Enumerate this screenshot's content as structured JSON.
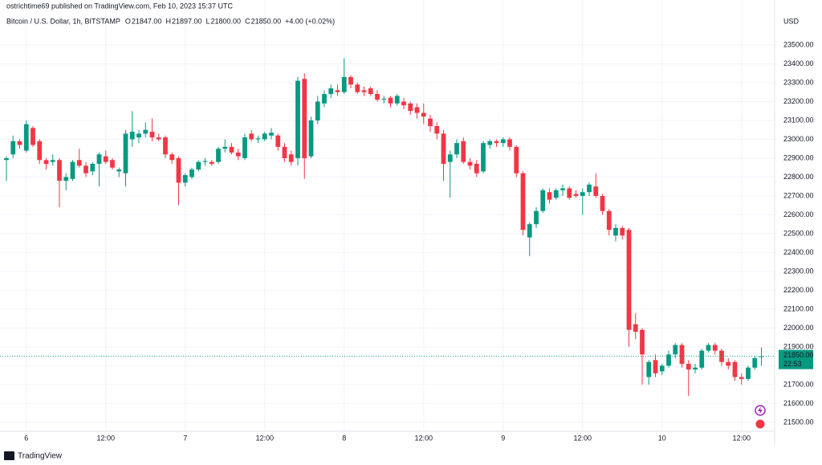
{
  "header": {
    "published": "ostrichtime69 published on TradingView.com, Feb 10, 2023 15:37 UTC",
    "symbol": "Bitcoin / U.S. Dollar, 1h, BITSTAMP",
    "ohlc": [
      {
        "label": "O",
        "value": "21847.00"
      },
      {
        "label": "H",
        "value": "21897.00"
      },
      {
        "label": "L",
        "value": "21800.00"
      },
      {
        "label": "C",
        "value": "21850.00"
      }
    ],
    "change": "+4.00 (+0.02%)",
    "currency": "USD",
    "price_tag": "21850.00",
    "countdown": "22:53",
    "logo": "TradingView"
  },
  "chart_data": {
    "type": "candlestick",
    "up_color": "#089981",
    "down_color": "#f23645",
    "grid": true,
    "x": [
      0,
      1,
      2,
      3,
      4,
      5,
      6,
      7,
      8,
      9,
      10,
      11,
      12,
      13,
      14,
      15,
      16,
      17,
      18,
      19,
      20,
      21,
      22,
      23,
      24,
      25,
      26,
      27,
      28,
      29,
      30,
      31,
      32,
      33,
      34,
      35,
      36,
      37,
      38,
      39,
      40,
      41,
      42,
      43,
      44,
      45,
      46,
      47,
      48,
      49,
      50,
      51,
      52,
      53,
      54,
      55,
      56,
      57,
      58,
      59,
      60,
      61,
      62,
      63,
      64,
      65,
      66,
      67,
      68,
      69,
      70,
      71,
      72,
      73,
      74,
      75,
      76,
      77,
      78,
      79,
      80,
      81,
      82,
      83,
      84,
      85,
      86,
      87,
      88,
      89,
      90,
      91,
      92,
      93,
      94,
      95,
      96,
      97,
      98,
      99,
      100,
      101,
      102,
      103,
      104,
      105,
      106,
      107,
      108,
      109,
      110,
      111,
      112,
      113,
      114
    ],
    "open": [
      22890,
      22920,
      22990,
      22940,
      23060,
      22990,
      22890,
      22880,
      22890,
      22780,
      22790,
      22890,
      22860,
      22830,
      22870,
      22910,
      22890,
      22830,
      22820,
      23000,
      23010,
      23030,
      23040,
      23010,
      23010,
      22920,
      22900,
      22770,
      22800,
      22840,
      22880,
      22880,
      22880,
      22950,
      22960,
      22930,
      22900,
      23030,
      23000,
      23000,
      23020,
      23020,
      22960,
      22920,
      22900,
      23320,
      22910,
      23100,
      23190,
      23240,
      23260,
      23250,
      23330,
      23290,
      23260,
      23270,
      23240,
      23210,
      23220,
      23190,
      23200,
      23190,
      23170,
      23140,
      23110,
      23070,
      23030,
      22880,
      22920,
      22990,
      22880,
      22870,
      22830,
      22970,
      22990,
      22980,
      23000,
      22960,
      22820,
      22480,
      22550,
      22620,
      22720,
      22690,
      22730,
      22740,
      22710,
      22700,
      22720,
      22750,
      22700,
      22620,
      22490,
      22530,
      22520,
      22020,
      21990,
      21740,
      21830,
      21770,
      21800,
      21860,
      21910,
      21810,
      21780,
      21790,
      21880,
      21910,
      21880,
      21820,
      21820,
      21740,
      21730,
      21790,
      21847
    ],
    "high": [
      22910,
      23020,
      23000,
      23100,
      23070,
      23000,
      22900,
      22920,
      22900,
      22820,
      22890,
      22950,
      22880,
      22880,
      22930,
      22940,
      22900,
      22850,
      23050,
      23150,
      23050,
      23090,
      23110,
      23030,
      23020,
      22930,
      22910,
      22820,
      22850,
      22890,
      22900,
      22890,
      22960,
      23000,
      22980,
      22950,
      23030,
      23050,
      23020,
      23040,
      23060,
      23030,
      22980,
      22940,
      23330,
      23350,
      23120,
      23230,
      23260,
      23290,
      23290,
      23430,
      23340,
      23300,
      23280,
      23280,
      23260,
      23230,
      23230,
      23240,
      23220,
      23200,
      23190,
      23190,
      23130,
      23090,
      23050,
      22940,
      23000,
      23010,
      22900,
      22890,
      22990,
      23000,
      23000,
      23010,
      23010,
      22970,
      22830,
      22560,
      22640,
      22740,
      22740,
      22740,
      22760,
      22750,
      22730,
      22740,
      22770,
      22820,
      22710,
      22630,
      22550,
      22540,
      22530,
      22080,
      22000,
      21830,
      21860,
      21810,
      21880,
      21920,
      21920,
      21830,
      21810,
      21890,
      21920,
      21920,
      21890,
      21840,
      21830,
      21760,
      21800,
      21850,
      21897
    ],
    "low": [
      22780,
      22900,
      22950,
      22930,
      22960,
      22870,
      22840,
      22860,
      22640,
      22730,
      22780,
      22850,
      22800,
      22810,
      22750,
      22870,
      22840,
      22800,
      22750,
      22960,
      22980,
      23010,
      22990,
      22990,
      22900,
      22870,
      22650,
      22750,
      22790,
      22830,
      22860,
      22860,
      22870,
      22930,
      22920,
      22890,
      22890,
      22990,
      22980,
      22990,
      23000,
      22940,
      22880,
      22860,
      22860,
      22790,
      22900,
      23080,
      23170,
      23220,
      23230,
      23240,
      23270,
      23240,
      23230,
      23230,
      23200,
      23190,
      23170,
      23180,
      23160,
      23130,
      23110,
      23080,
      23040,
      23000,
      22780,
      22690,
      22900,
      22870,
      22840,
      22800,
      22820,
      22950,
      22960,
      22960,
      22940,
      22800,
      22490,
      22380,
      22530,
      22610,
      22660,
      22680,
      22700,
      22680,
      22690,
      22600,
      22700,
      22690,
      22600,
      22490,
      22460,
      22470,
      21900,
      21940,
      21700,
      21700,
      21740,
      21750,
      21790,
      21840,
      21790,
      21640,
      21760,
      21780,
      21870,
      21860,
      21800,
      21780,
      21720,
      21700,
      21720,
      21780,
      21800
    ],
    "close": [
      22900,
      22990,
      22970,
      23080,
      22970,
      22890,
      22870,
      22890,
      22780,
      22800,
      22880,
      22860,
      22820,
      22870,
      22920,
      22880,
      22850,
      22840,
      23030,
      23040,
      23030,
      23050,
      23010,
      23000,
      22920,
      22890,
      22770,
      22810,
      22840,
      22880,
      22885,
      22870,
      22950,
      22960,
      22930,
      22910,
      23010,
      23000,
      23005,
      23030,
      23035,
      22960,
      22900,
      22880,
      23310,
      22900,
      23100,
      23200,
      23240,
      23270,
      23250,
      23330,
      23290,
      23250,
      23250,
      23240,
      23210,
      23215,
      23190,
      23230,
      23180,
      23150,
      23140,
      23120,
      23070,
      23030,
      22870,
      22920,
      22980,
      22880,
      22860,
      22820,
      22980,
      22990,
      22980,
      23000,
      22960,
      22820,
      22520,
      22550,
      22620,
      22730,
      22680,
      22730,
      22740,
      22690,
      22700,
      22720,
      22760,
      22700,
      22620,
      22520,
      22530,
      22490,
      21990,
      21980,
      21860,
      21820,
      21760,
      21800,
      21860,
      21910,
      21810,
      21780,
      21790,
      21880,
      21910,
      21880,
      21820,
      21800,
      21740,
      21730,
      21790,
      21840,
      21850
    ],
    "xlim": [
      -0.97,
      116
    ],
    "xticks": [
      {
        "value": 3,
        "label": "6"
      },
      {
        "value": 15,
        "label": "12:00"
      },
      {
        "value": 27,
        "label": "7"
      },
      {
        "value": 39,
        "label": "12:00"
      },
      {
        "value": 51,
        "label": "8"
      },
      {
        "value": 63,
        "label": "12:00"
      },
      {
        "value": 75,
        "label": "9"
      },
      {
        "value": 87,
        "label": "12:00"
      },
      {
        "value": 99,
        "label": "10"
      },
      {
        "value": 111,
        "label": "12:00"
      }
    ],
    "ylim": [
      21457,
      23653
    ],
    "yticks": [
      {
        "value": 21500,
        "label": "21500.00"
      },
      {
        "value": 21600,
        "label": "21600.00"
      },
      {
        "value": 21700,
        "label": "21700.00"
      },
      {
        "value": 21800,
        "label": "21800.00"
      },
      {
        "value": 21900,
        "label": "21900.00"
      },
      {
        "value": 22000,
        "label": "22000.00"
      },
      {
        "value": 22100,
        "label": "22100.00"
      },
      {
        "value": 22200,
        "label": "22200.00"
      },
      {
        "value": 22300,
        "label": "22300.00"
      },
      {
        "value": 22400,
        "label": "22400.00"
      },
      {
        "value": 22500,
        "label": "22500.00"
      },
      {
        "value": 22600,
        "label": "22600.00"
      },
      {
        "value": 22700,
        "label": "22700.00"
      },
      {
        "value": 22800,
        "label": "22800.00"
      },
      {
        "value": 22900,
        "label": "22900.00"
      },
      {
        "value": 23000,
        "label": "23000.00"
      },
      {
        "value": 23100,
        "label": "23100.00"
      },
      {
        "value": 23200,
        "label": "23200.00"
      },
      {
        "value": 23300,
        "label": "23300.00"
      },
      {
        "value": 23400,
        "label": "23400.00"
      },
      {
        "value": 23500,
        "label": "23500.00"
      }
    ]
  }
}
